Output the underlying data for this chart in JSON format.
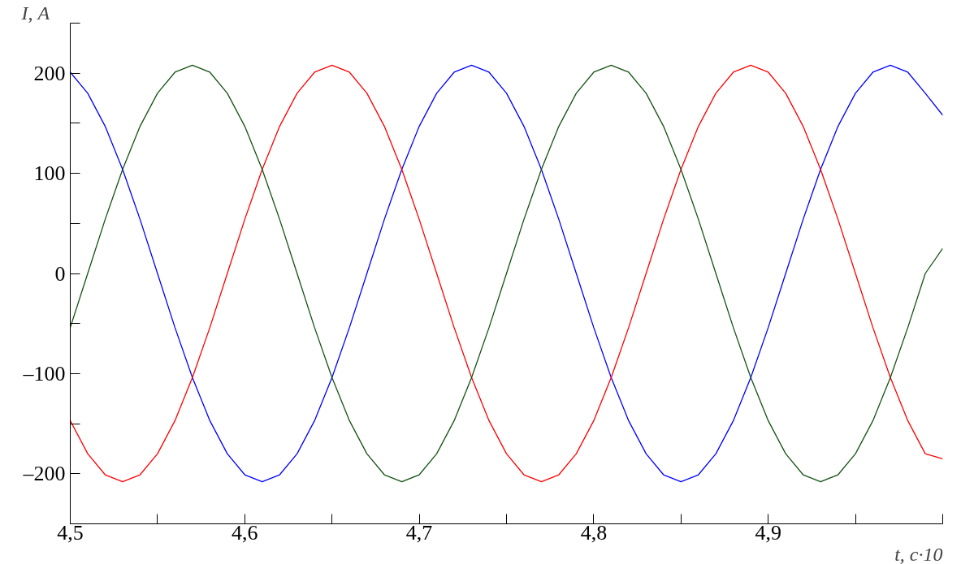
{
  "chart_data": {
    "type": "line",
    "xlabel": "t, с·10",
    "ylabel": "I, А",
    "x": [
      4.5,
      4.51,
      4.52,
      4.53,
      4.54,
      4.55,
      4.56,
      4.57,
      4.58,
      4.59,
      4.6,
      4.61,
      4.62,
      4.63,
      4.64,
      4.65,
      4.66,
      4.67,
      4.68,
      4.69,
      4.7,
      4.71,
      4.72,
      4.73,
      4.74,
      4.75,
      4.76,
      4.77,
      4.78,
      4.79,
      4.8,
      4.81,
      4.82,
      4.83,
      4.84,
      4.85,
      4.86,
      4.87,
      4.88,
      4.89,
      4.9,
      4.91,
      4.92,
      4.93,
      4.94,
      4.95,
      4.96,
      4.97,
      4.98,
      4.99,
      5.0
    ],
    "series": [
      {
        "color": "#0000ff",
        "values": [
          201,
          180,
          147,
          104,
          54,
          0,
          -54,
          -104,
          -147,
          -180,
          -201,
          -208,
          -201,
          -180,
          -147,
          -104,
          -54,
          0,
          54,
          104,
          147,
          180,
          201,
          208,
          201,
          180,
          147,
          104,
          54,
          0,
          -54,
          -104,
          -147,
          -180,
          -201,
          -208,
          -201,
          -180,
          -147,
          -104,
          -54,
          0,
          54,
          104,
          147,
          180,
          201,
          208,
          201,
          180,
          158
        ]
      },
      {
        "color": "#ff0000",
        "values": [
          -147,
          -180,
          -201,
          -208,
          -201,
          -180,
          -147,
          -104,
          -54,
          0,
          54,
          104,
          147,
          180,
          201,
          208,
          201,
          180,
          147,
          104,
          54,
          0,
          -54,
          -104,
          -147,
          -180,
          -201,
          -208,
          -201,
          -180,
          -147,
          -104,
          -54,
          0,
          54,
          104,
          147,
          180,
          201,
          208,
          201,
          180,
          147,
          104,
          54,
          0,
          -54,
          -104,
          -147,
          -180,
          -185
        ]
      },
      {
        "color": "#145214",
        "values": [
          -54,
          0,
          54,
          104,
          147,
          180,
          201,
          208,
          201,
          180,
          147,
          104,
          54,
          0,
          -54,
          -104,
          -147,
          -180,
          -201,
          -208,
          -201,
          -180,
          -147,
          -104,
          -54,
          0,
          54,
          104,
          147,
          180,
          201,
          208,
          201,
          180,
          147,
          104,
          54,
          0,
          -54,
          -104,
          -147,
          -180,
          -201,
          -208,
          -201,
          -180,
          -147,
          -104,
          -54,
          0,
          25
        ]
      }
    ],
    "xlim": [
      4.5,
      5.0
    ],
    "xticks": [
      {
        "value": 4.5,
        "label": "4,5"
      },
      {
        "value": 4.55,
        "label": null
      },
      {
        "value": 4.6,
        "label": "4,6"
      },
      {
        "value": 4.65,
        "label": null
      },
      {
        "value": 4.7,
        "label": "4,7"
      },
      {
        "value": 4.75,
        "label": null
      },
      {
        "value": 4.8,
        "label": "4,8"
      },
      {
        "value": 4.85,
        "label": null
      },
      {
        "value": 4.9,
        "label": "4,9"
      },
      {
        "value": 4.95,
        "label": null
      },
      {
        "value": 5.0,
        "label": null
      }
    ],
    "ylim": [
      -250,
      250
    ],
    "yticks": [
      {
        "value": -250,
        "label": null
      },
      {
        "value": -200,
        "label": "–200"
      },
      {
        "value": -150,
        "label": null
      },
      {
        "value": -100,
        "label": "–100"
      },
      {
        "value": -50,
        "label": null
      },
      0,
      {
        "value": 50,
        "label": null
      },
      100,
      {
        "value": 150,
        "label": null
      },
      200,
      {
        "value": 250,
        "label": null
      }
    ],
    "grid": false,
    "marker": "none",
    "line_style": "solid"
  }
}
